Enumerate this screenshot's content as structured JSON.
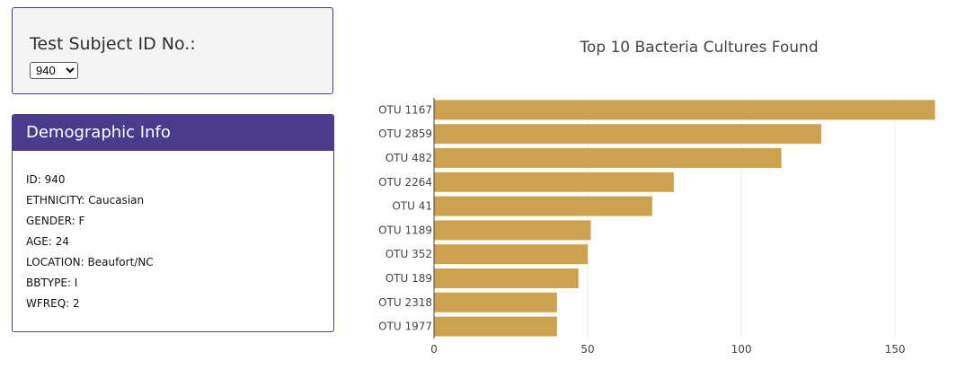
{
  "selector": {
    "label": "Test Subject ID No.:",
    "selected": "940"
  },
  "demographics": {
    "title": "Demographic Info",
    "lines": [
      "ID: 940",
      "ETHNICITY: Caucasian",
      "GENDER: F",
      "AGE: 24",
      "LOCATION: Beaufort/NC",
      "BBTYPE: I",
      "WFREQ: 2"
    ]
  },
  "colors": {
    "accent": "#4a3b8c",
    "bar": "#cca14f",
    "grid": "#ececec"
  },
  "chart_data": {
    "type": "bar",
    "orientation": "horizontal",
    "title": "Top 10 Bacteria Cultures Found",
    "xlabel": "",
    "ylabel": "",
    "categories": [
      "OTU 1167",
      "OTU 2859",
      "OTU 482",
      "OTU 2264",
      "OTU 41",
      "OTU 1189",
      "OTU 352",
      "OTU 189",
      "OTU 2318",
      "OTU 1977"
    ],
    "values": [
      163,
      126,
      113,
      78,
      71,
      51,
      50,
      47,
      40,
      40
    ],
    "xlim": [
      0,
      164
    ],
    "xticks": [
      0,
      50,
      100,
      150
    ],
    "grid": true
  }
}
